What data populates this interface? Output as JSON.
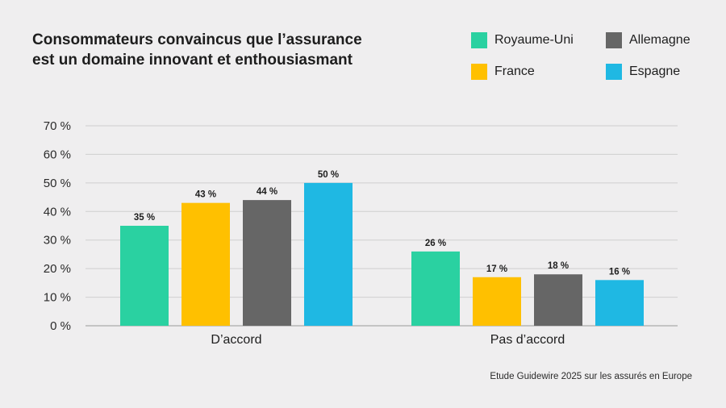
{
  "chart_data": {
    "type": "bar",
    "title_lines": [
      "Consommateurs convaincus que l’assurance",
      "est un domaine innovant et enthousiasmant"
    ],
    "categories": [
      "D’accord",
      "Pas d’accord"
    ],
    "series": [
      {
        "name": "Royaume-Uni",
        "color": "#2ad1a1",
        "values": [
          35,
          26
        ],
        "labels": [
          "35 %",
          "26 %"
        ]
      },
      {
        "name": "France",
        "color": "#ffc000",
        "values": [
          43,
          17
        ],
        "labels": [
          "43 %",
          "17 %"
        ]
      },
      {
        "name": "Allemagne",
        "color": "#666666",
        "values": [
          44,
          18
        ],
        "labels": [
          "44 %",
          "18 %"
        ]
      },
      {
        "name": "Espagne",
        "color": "#1fb8e3",
        "values": [
          50,
          16
        ],
        "labels": [
          "50 %",
          "16 %"
        ]
      }
    ],
    "yticks": [
      0,
      10,
      20,
      30,
      40,
      50,
      60,
      70
    ],
    "ytick_labels": [
      "0 %",
      "10 %",
      "20 %",
      "30 %",
      "40 %",
      "50 %",
      "60 %",
      "70 %"
    ],
    "ylim": [
      0,
      70
    ],
    "grid": true,
    "legend_position": "top-right",
    "source": "Etude Guidewire 2025 sur les assurés en Europe"
  }
}
